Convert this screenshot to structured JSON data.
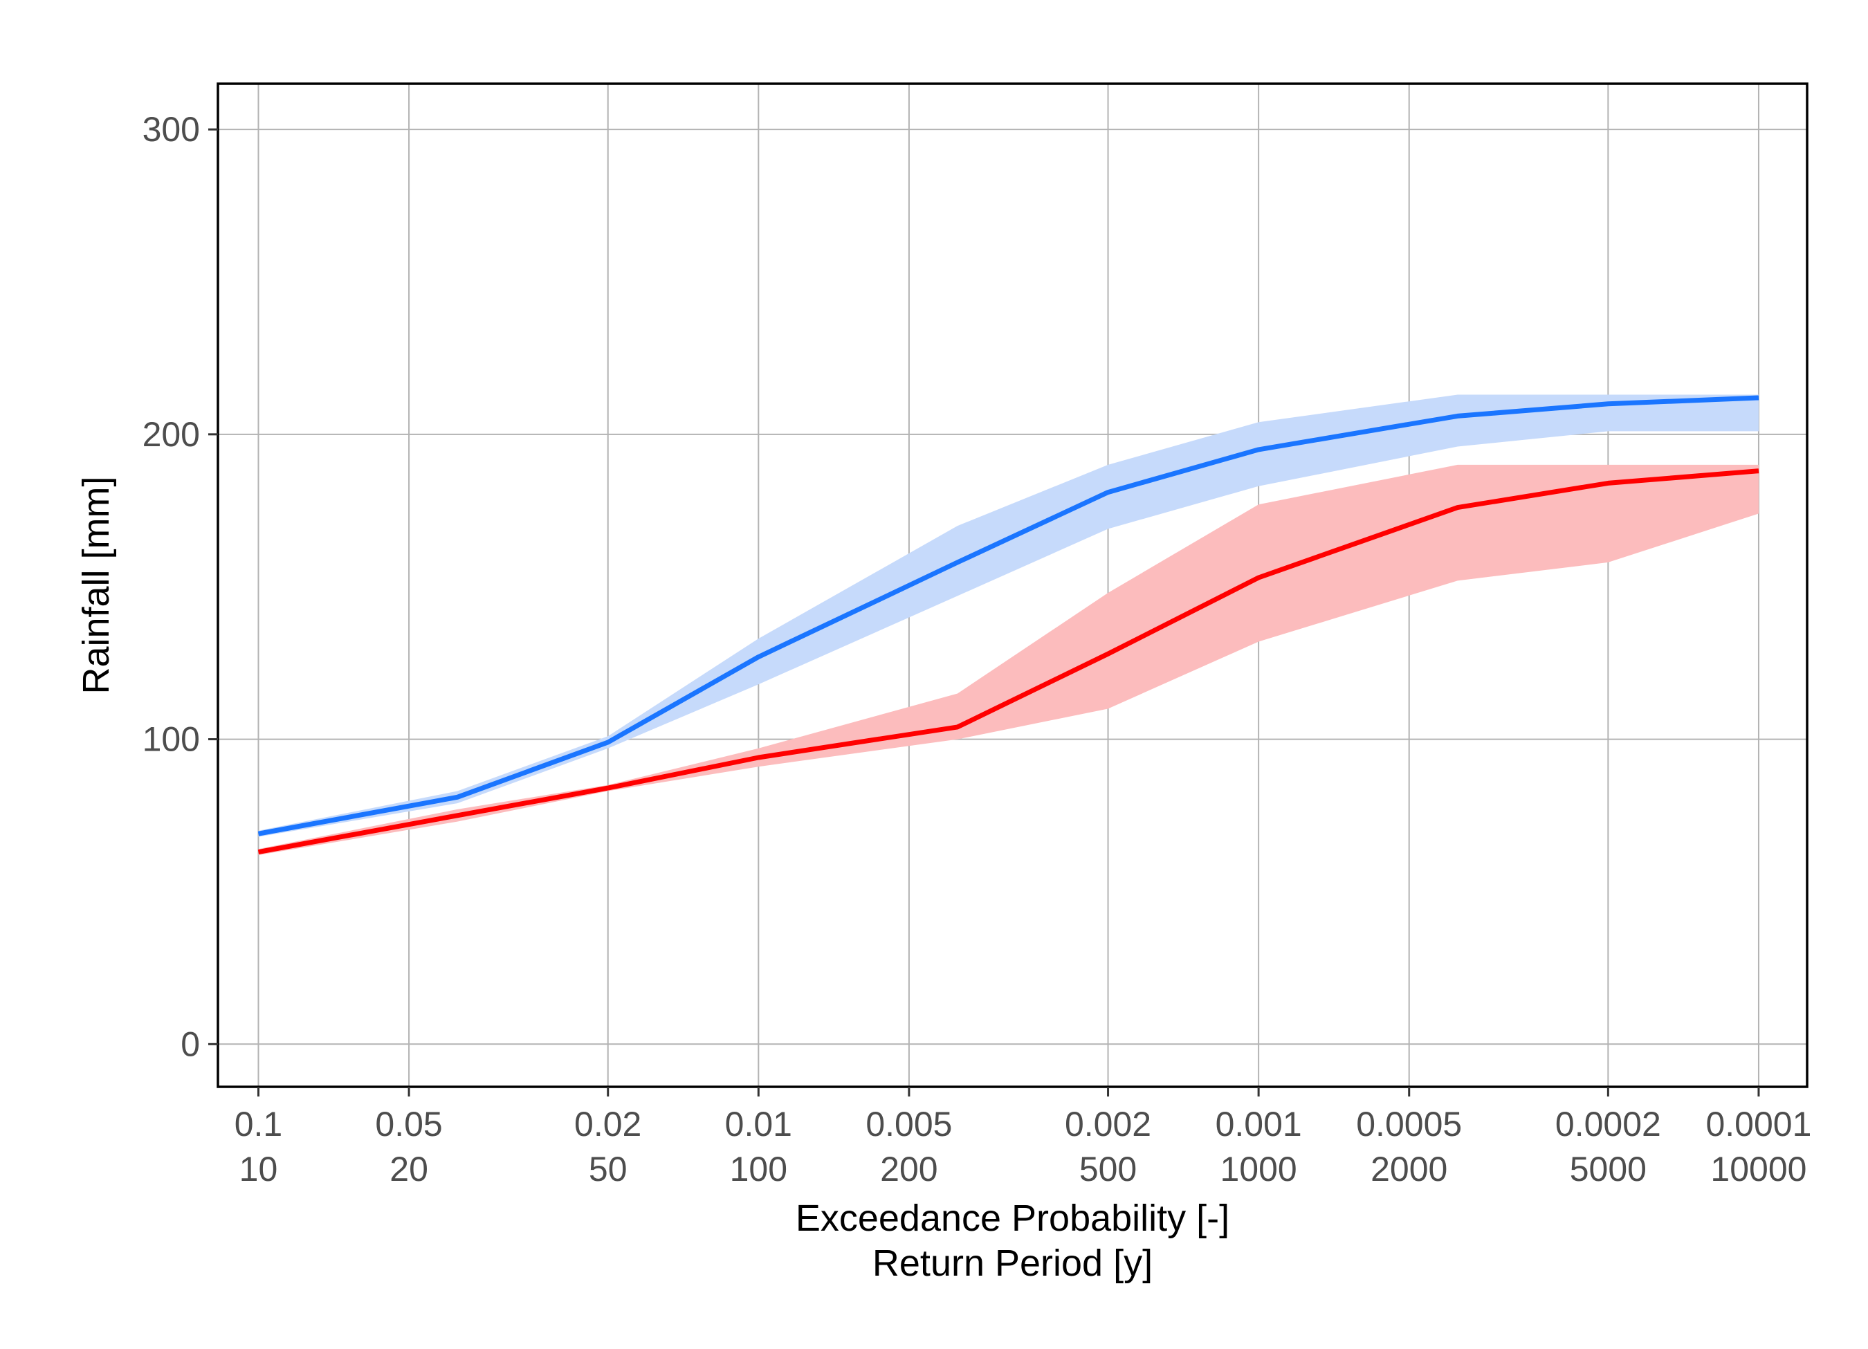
{
  "chart_data": {
    "type": "line",
    "title": "",
    "xlabel_lines": [
      "Exceedance Probability [-]",
      "Return Period [y]"
    ],
    "ylabel": "Rainfall [mm]",
    "x_scale": "log",
    "x_axis_unit": "return period (years)",
    "xlim": [
      8.3,
      12500
    ],
    "ylim": [
      -14,
      315
    ],
    "grid": true,
    "legend": "none",
    "y_ticks": [
      {
        "value": 0,
        "label": "0"
      },
      {
        "value": 100,
        "label": "100"
      },
      {
        "value": 200,
        "label": "200"
      },
      {
        "value": 300,
        "label": "300"
      }
    ],
    "x_ticks": [
      {
        "value": 10,
        "prob_label": "0.1",
        "period_label": "10"
      },
      {
        "value": 20,
        "prob_label": "0.05",
        "period_label": "20"
      },
      {
        "value": 50,
        "prob_label": "0.02",
        "period_label": "50"
      },
      {
        "value": 100,
        "prob_label": "0.01",
        "period_label": "100"
      },
      {
        "value": 200,
        "prob_label": "0.005",
        "period_label": "200"
      },
      {
        "value": 500,
        "prob_label": "0.002",
        "period_label": "500"
      },
      {
        "value": 1000,
        "prob_label": "0.001",
        "period_label": "1000"
      },
      {
        "value": 2000,
        "prob_label": "0.0005",
        "period_label": "2000"
      },
      {
        "value": 5000,
        "prob_label": "0.0002",
        "period_label": "5000"
      },
      {
        "value": 10000,
        "prob_label": "0.0001",
        "period_label": "10000"
      }
    ],
    "series": [
      {
        "color": "#1a75ff",
        "band_color": "#c6dafb",
        "x": [
          10,
          25,
          50,
          100,
          250,
          500,
          1000,
          2500,
          5000,
          10000
        ],
        "y": [
          69,
          81,
          99,
          127,
          158,
          181,
          195,
          206,
          210,
          212
        ],
        "lower": [
          68,
          79,
          97,
          118,
          147,
          169,
          183,
          196,
          201,
          201
        ],
        "upper": [
          70,
          83,
          101,
          133,
          170,
          190,
          204,
          213,
          213,
          213
        ]
      },
      {
        "color": "#ff0000",
        "band_color": "#fcbcbd",
        "x": [
          10,
          25,
          50,
          100,
          250,
          500,
          1000,
          2500,
          5000,
          10000
        ],
        "y": [
          63,
          75,
          84,
          94,
          104,
          128,
          153,
          176,
          184,
          188
        ],
        "lower": [
          62,
          73,
          83,
          91,
          100,
          110,
          132,
          152,
          158,
          174
        ],
        "upper": [
          64,
          77,
          85,
          97,
          115,
          148,
          177,
          190,
          190,
          190
        ]
      }
    ]
  }
}
